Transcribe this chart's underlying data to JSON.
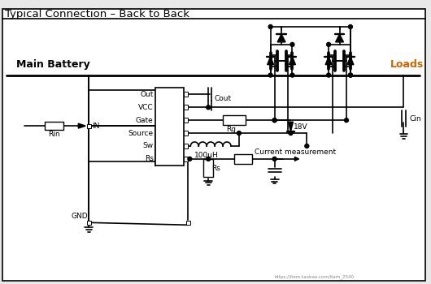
{
  "title": "Typical Connection – Back to Back",
  "bg_color": "#e8e8e8",
  "panel_color": "#ffffff",
  "lc": "#000000",
  "text_main_battery": "Main Battery",
  "text_loads": "Loads",
  "text_cin": "Cin",
  "text_cout": "Cout",
  "text_rg": "Rg",
  "text_18v": "18V",
  "text_100uH": "100μH",
  "text_rs_v": "Rs",
  "text_rin": "Rin",
  "text_in": "IN",
  "text_gnd": "GND",
  "text_out": "Out",
  "text_vcc": "VCC",
  "text_gate": "Gate",
  "text_source": "Source",
  "text_sw": "Sw",
  "text_rs_pin": "Rs",
  "text_current": "Current measurement",
  "watermark": "https://item.taobao.com/item_2540",
  "fig_width": 5.3,
  "fig_height": 3.5,
  "dpi": 100
}
